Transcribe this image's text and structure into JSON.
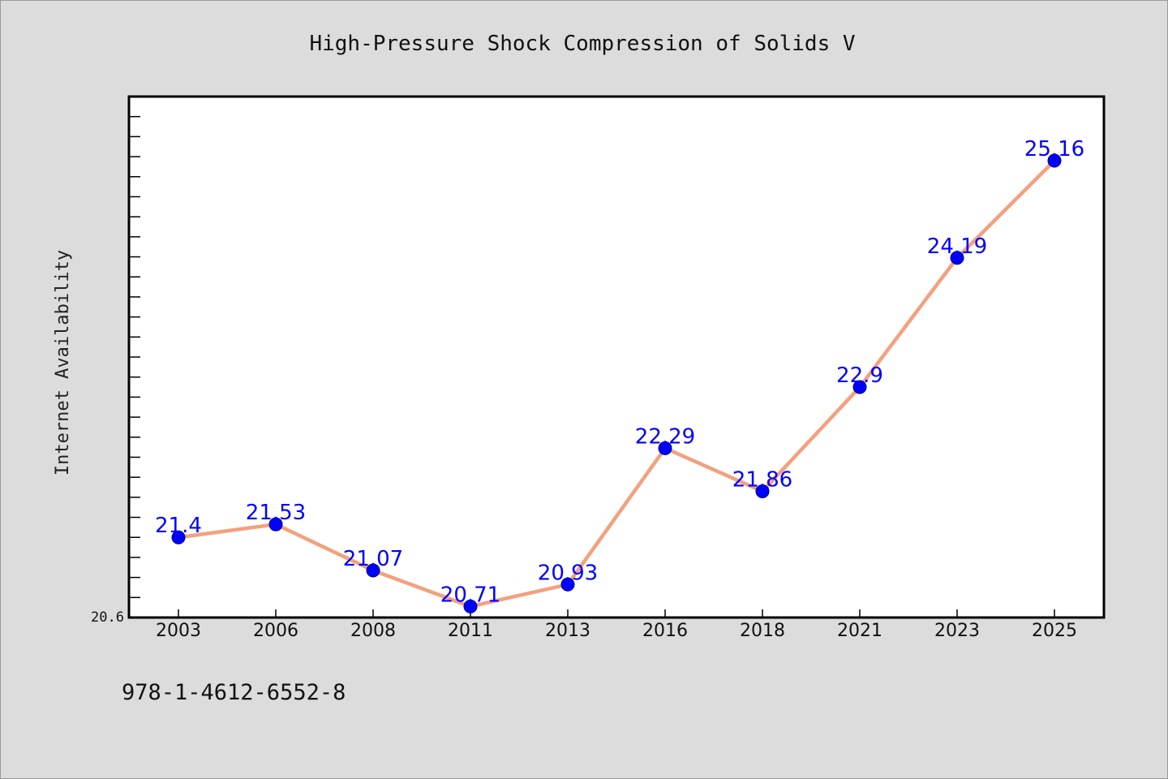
{
  "chart_data": {
    "type": "line",
    "title": "High-Pressure Shock Compression of Solids V",
    "xlabel": "",
    "ylabel": "Internet Availability",
    "categories": [
      "2003",
      "2006",
      "2008",
      "2011",
      "2013",
      "2016",
      "2018",
      "2021",
      "2023",
      "2025"
    ],
    "series": [
      {
        "values": [
          21.4,
          21.53,
          21.07,
          20.71,
          20.93,
          22.29,
          21.86,
          22.9,
          24.19,
          25.16
        ],
        "data_labels": [
          "21.4",
          "21.53",
          "21.07",
          "20.71",
          "20.93",
          "22.29",
          "21.86",
          "22.9",
          "24.19",
          "25.16"
        ],
        "line_color": "#f4a07e",
        "marker_color": "#0000ff"
      }
    ],
    "ylim": [
      20.6,
      25.8
    ],
    "y_tick_labels": [
      "20.6"
    ],
    "grid": false,
    "legend": "none"
  },
  "footer": {
    "isbn": "978-1-4612-6552-8"
  },
  "colors": {
    "background": "#dcdcdc",
    "plot_background": "#ffffff",
    "axis": "#000000"
  }
}
